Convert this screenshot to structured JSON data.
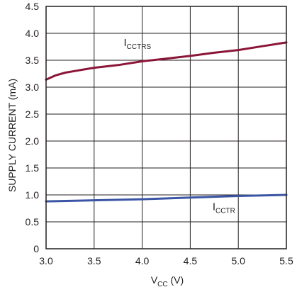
{
  "chart_data": {
    "type": "line",
    "title": "",
    "xlabel": {
      "main": "V",
      "sub": "CC",
      "unit": " (V)"
    },
    "ylabel": "SUPPLY CURRENT (mA)",
    "xlim": [
      3.0,
      5.5
    ],
    "ylim": [
      0,
      4.5
    ],
    "x_ticks": [
      "3.0",
      "3.5",
      "4.0",
      "4.5",
      "5.0",
      "5.5"
    ],
    "y_ticks": [
      "0",
      "0.5",
      "1.0",
      "1.5",
      "2.0",
      "2.5",
      "3.0",
      "3.5",
      "4.0",
      "4.5"
    ],
    "grid": true,
    "series": [
      {
        "name": "I_CCTRS",
        "label_main": "I",
        "label_sub": "CCTRS",
        "color": "#8b1538",
        "points": [
          [
            3.0,
            3.14
          ],
          [
            3.1,
            3.22
          ],
          [
            3.2,
            3.27
          ],
          [
            3.3,
            3.3
          ],
          [
            3.4,
            3.33
          ],
          [
            3.5,
            3.36
          ],
          [
            3.75,
            3.41
          ],
          [
            4.0,
            3.48
          ],
          [
            4.25,
            3.53
          ],
          [
            4.5,
            3.58
          ],
          [
            4.75,
            3.64
          ],
          [
            5.0,
            3.69
          ],
          [
            5.25,
            3.76
          ],
          [
            5.5,
            3.83
          ]
        ]
      },
      {
        "name": "I_CCTR",
        "label_main": "I",
        "label_sub": "CCTR",
        "color": "#3a55a4",
        "points": [
          [
            3.0,
            0.88
          ],
          [
            3.5,
            0.9
          ],
          [
            4.0,
            0.92
          ],
          [
            4.5,
            0.95
          ],
          [
            5.0,
            0.98
          ],
          [
            5.5,
            1.0
          ]
        ]
      }
    ],
    "annotations": [
      {
        "series": 0,
        "x": 3.95,
        "y": 3.76
      },
      {
        "series": 1,
        "x": 4.85,
        "y": 0.72
      }
    ]
  }
}
